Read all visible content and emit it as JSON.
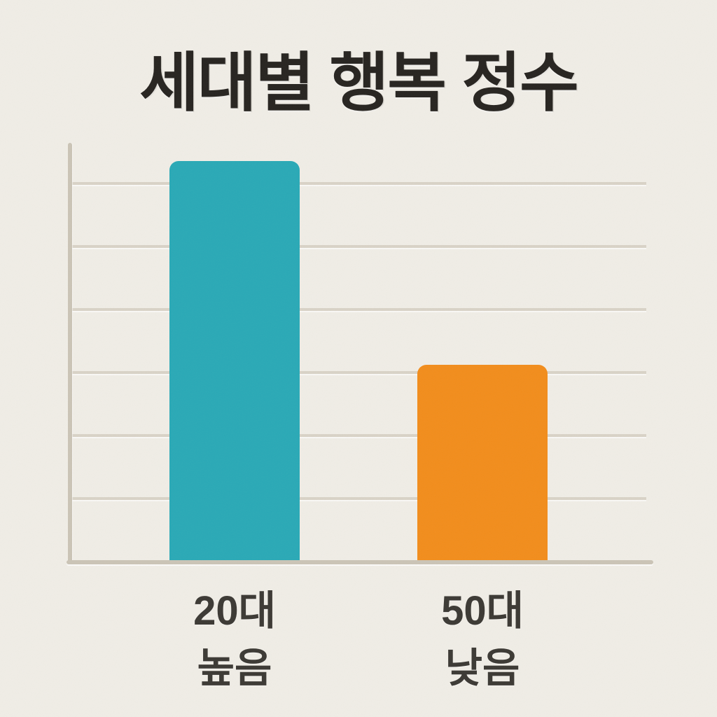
{
  "title": "세대별 행복 정수",
  "bars": [
    {
      "category": "20대",
      "qualifier": "높음",
      "color": "#2AA9B6",
      "value_gridline_units": 6.37
    },
    {
      "category": "50대",
      "qualifier": "낮음",
      "color": "#F28D1C",
      "value_gridline_units": 3.13
    }
  ],
  "colors": {
    "background": "#F0EDE6",
    "bar_teal": "#2AA9B6",
    "bar_orange": "#F28D1C",
    "gridline": "#D9D3C7",
    "axis": "#CBC4B6",
    "title_text": "#272420",
    "label_text": "#3C3934"
  },
  "chart_data": {
    "type": "bar",
    "title": "세대별 행복 정수",
    "categories": [
      "20대 높음",
      "50대 낮음"
    ],
    "values": [
      6.37,
      3.13
    ],
    "series": [
      {
        "name": "행복 정수",
        "values": [
          6.37,
          3.13
        ]
      }
    ],
    "annotations": [
      "높음",
      "낮음"
    ],
    "value_unit": "gridline-intervals (y-axis has no numeric tick labels; 1 unit = one gridline spacing)",
    "ylim": [
      0,
      6.64
    ],
    "gridline_count": 6,
    "grid": true,
    "legend": "none",
    "xlabel": "",
    "ylabel": "",
    "bar_colors": [
      "#2AA9B6",
      "#F28D1C"
    ]
  }
}
